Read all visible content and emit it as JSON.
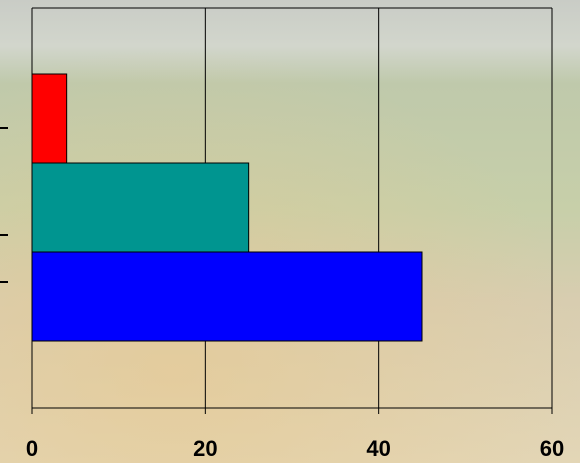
{
  "chart_data": {
    "type": "bar",
    "orientation": "horizontal",
    "categories": [
      null,
      null,
      null
    ],
    "values": [
      45,
      25,
      4
    ],
    "colors": [
      "#0000ff",
      "#009590",
      "#ff0000"
    ],
    "xlim": [
      0,
      60
    ],
    "xticks": [
      0,
      20,
      40,
      60
    ],
    "grid": true
  }
}
